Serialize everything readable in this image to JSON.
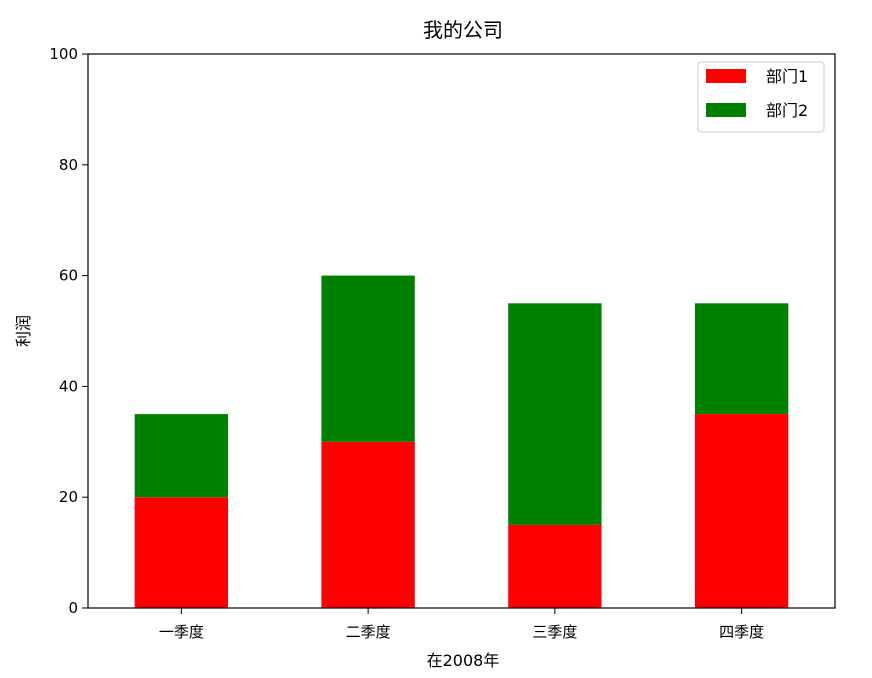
{
  "chart_data": {
    "type": "bar",
    "stacked": true,
    "title": "我的公司",
    "xlabel": "在2008年",
    "ylabel": "利润",
    "categories": [
      "一季度",
      "二季度",
      "三季度",
      "四季度"
    ],
    "series": [
      {
        "name": "部门1",
        "color": "#ff0000",
        "values": [
          20,
          30,
          15,
          35
        ]
      },
      {
        "name": "部门2",
        "color": "#008000",
        "values": [
          15,
          30,
          40,
          20
        ]
      }
    ],
    "ylim": [
      0,
      100
    ],
    "yticks": [
      0,
      20,
      40,
      60,
      80,
      100
    ],
    "grid": false,
    "legend_position": "top-right"
  }
}
